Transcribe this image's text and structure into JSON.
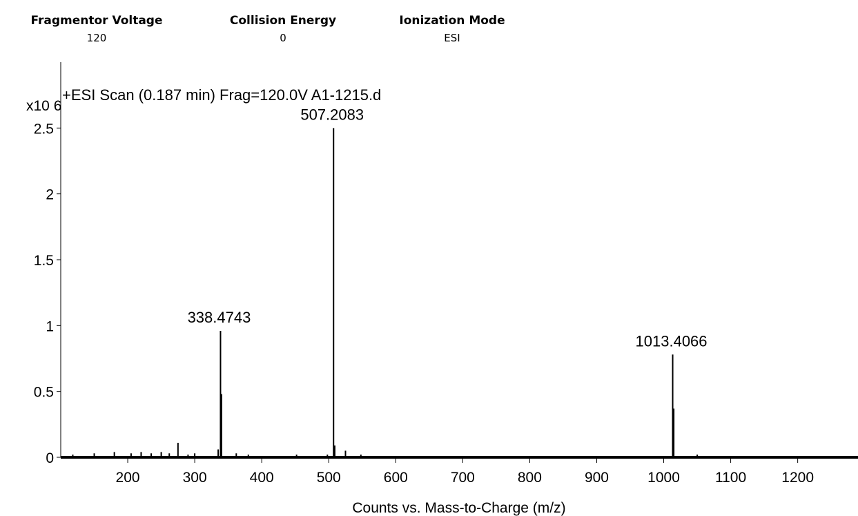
{
  "params": [
    {
      "label": "Fragmentor Voltage",
      "value": "120"
    },
    {
      "label": "Collision Energy",
      "value": "0"
    },
    {
      "label": "Ionization Mode",
      "value": "ESI"
    }
  ],
  "chart_data": {
    "type": "bar",
    "title": "+ESI Scan (0.187 min) Frag=120.0V A1-1215.d",
    "xlabel": "Counts vs. Mass-to-Charge (m/z)",
    "ylabel": "",
    "y_multiplier_label": "x10 6",
    "xlim": [
      100,
      1290
    ],
    "ylim": [
      0,
      3.0
    ],
    "x_ticks": [
      200,
      300,
      400,
      500,
      600,
      700,
      800,
      900,
      1000,
      1100,
      1200
    ],
    "y_ticks": [
      0,
      0.5,
      1,
      1.5,
      2,
      2.5
    ],
    "y_tick_labels": [
      "0",
      "0.5",
      "1",
      "1.5",
      "2",
      "2.5"
    ],
    "grid": false,
    "peaks": [
      {
        "mz": 338.4743,
        "intensity": 0.96,
        "label": "338.4743"
      },
      {
        "mz": 507.2083,
        "intensity": 2.5,
        "label": "507.2083"
      },
      {
        "mz": 1013.4066,
        "intensity": 0.78,
        "label": "1013.4066"
      },
      {
        "mz": 340.0,
        "intensity": 0.48
      },
      {
        "mz": 1015.0,
        "intensity": 0.37
      },
      {
        "mz": 509.0,
        "intensity": 0.09
      },
      {
        "mz": 525.0,
        "intensity": 0.05
      },
      {
        "mz": 275.0,
        "intensity": 0.11
      },
      {
        "mz": 335.0,
        "intensity": 0.06
      },
      {
        "mz": 250.0,
        "intensity": 0.04
      },
      {
        "mz": 220.0,
        "intensity": 0.04
      },
      {
        "mz": 180.0,
        "intensity": 0.04
      },
      {
        "mz": 300.0,
        "intensity": 0.03
      },
      {
        "mz": 205.0,
        "intensity": 0.03
      },
      {
        "mz": 150.0,
        "intensity": 0.03
      },
      {
        "mz": 118.0,
        "intensity": 0.02
      },
      {
        "mz": 235.0,
        "intensity": 0.03
      },
      {
        "mz": 262.0,
        "intensity": 0.03
      },
      {
        "mz": 290.0,
        "intensity": 0.02
      },
      {
        "mz": 362.0,
        "intensity": 0.03
      },
      {
        "mz": 380.0,
        "intensity": 0.02
      },
      {
        "mz": 452.0,
        "intensity": 0.02
      },
      {
        "mz": 498.0,
        "intensity": 0.02
      },
      {
        "mz": 548.0,
        "intensity": 0.02
      },
      {
        "mz": 1050.0,
        "intensity": 0.02
      }
    ]
  }
}
